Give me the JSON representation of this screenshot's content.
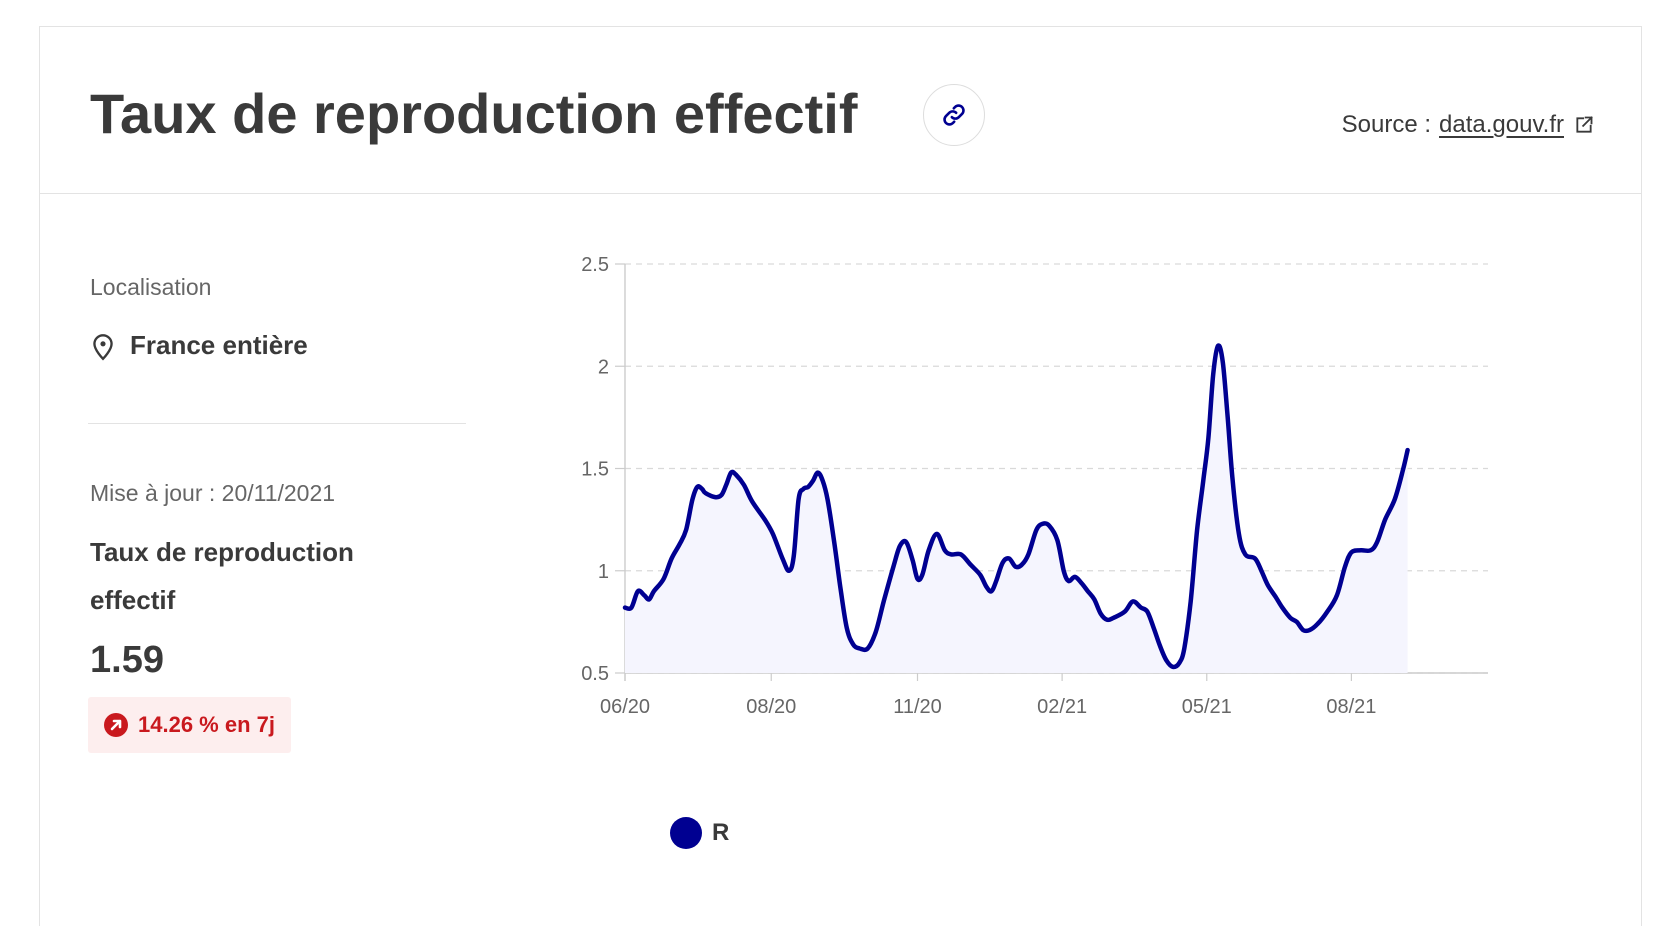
{
  "header": {
    "title": "Taux de reproduction effectif",
    "link_icon": "link-icon",
    "source_prefix": "Source :",
    "source_link": "data.gouv.fr",
    "source_icon": "external-link-icon"
  },
  "location": {
    "label": "Localisation",
    "icon": "map-pin-icon",
    "value": "France entière"
  },
  "metric": {
    "update": "Mise à jour : 20/11/2021",
    "title": "Taux de reproduction effectif",
    "value": "1.59",
    "trend_icon": "arrow-up-right-icon",
    "trend": "14.26 % en 7j",
    "trend_color": "#c9191e"
  },
  "colors": {
    "series": "#000091",
    "area": "#f5f5fe"
  },
  "chart_data": {
    "type": "area",
    "title": "",
    "xlabel": "",
    "ylabel": "",
    "x_tick_labels": [
      "06/20",
      "08/20",
      "11/20",
      "02/21",
      "05/21",
      "08/21"
    ],
    "x_ticks": [
      "2020-06-01",
      "2020-08-31",
      "2020-11-30",
      "2021-02-28",
      "2021-05-29",
      "2021-08-27"
    ],
    "y_ticks": [
      0.5,
      1,
      1.5,
      2,
      2.5
    ],
    "y_tick_labels": [
      "0.5",
      "1",
      "1.5",
      "2",
      "2.5"
    ],
    "ylim": [
      0.5,
      2.5
    ],
    "xlim": [
      "2020-06-01",
      "2021-11-20"
    ],
    "grid": true,
    "legend": "bottom-left",
    "series": [
      {
        "name": "R",
        "color": "#000091",
        "points": [
          [
            "2020-06-01",
            0.82
          ],
          [
            "2020-06-05",
            0.82
          ],
          [
            "2020-06-09",
            0.9
          ],
          [
            "2020-06-13",
            0.88
          ],
          [
            "2020-06-16",
            0.86
          ],
          [
            "2020-06-19",
            0.9
          ],
          [
            "2020-06-25",
            0.96
          ],
          [
            "2020-06-30",
            1.06
          ],
          [
            "2020-07-05",
            1.13
          ],
          [
            "2020-07-09",
            1.2
          ],
          [
            "2020-07-13",
            1.35
          ],
          [
            "2020-07-16",
            1.41
          ],
          [
            "2020-07-19",
            1.4
          ],
          [
            "2020-07-21",
            1.38
          ],
          [
            "2020-07-27",
            1.36
          ],
          [
            "2020-07-31",
            1.37
          ],
          [
            "2020-08-03",
            1.42
          ],
          [
            "2020-08-06",
            1.48
          ],
          [
            "2020-08-09",
            1.47
          ],
          [
            "2020-08-14",
            1.42
          ],
          [
            "2020-08-19",
            1.34
          ],
          [
            "2020-08-27",
            1.25
          ],
          [
            "2020-09-01",
            1.18
          ],
          [
            "2020-09-07",
            1.06
          ],
          [
            "2020-09-11",
            1.0
          ],
          [
            "2020-09-14",
            1.07
          ],
          [
            "2020-09-17",
            1.35
          ],
          [
            "2020-09-20",
            1.4
          ],
          [
            "2020-09-23",
            1.41
          ],
          [
            "2020-09-26",
            1.44
          ],
          [
            "2020-09-29",
            1.48
          ],
          [
            "2020-10-02",
            1.44
          ],
          [
            "2020-10-05",
            1.35
          ],
          [
            "2020-10-09",
            1.15
          ],
          [
            "2020-10-13",
            0.92
          ],
          [
            "2020-10-17",
            0.72
          ],
          [
            "2020-10-21",
            0.64
          ],
          [
            "2020-10-25",
            0.62
          ],
          [
            "2020-10-30",
            0.62
          ],
          [
            "2020-11-04",
            0.7
          ],
          [
            "2020-11-09",
            0.85
          ],
          [
            "2020-11-15",
            1.02
          ],
          [
            "2020-11-19",
            1.12
          ],
          [
            "2020-11-23",
            1.14
          ],
          [
            "2020-11-27",
            1.05
          ],
          [
            "2020-11-30",
            0.96
          ],
          [
            "2020-12-03",
            0.98
          ],
          [
            "2020-12-07",
            1.1
          ],
          [
            "2020-12-12",
            1.18
          ],
          [
            "2020-12-17",
            1.1
          ],
          [
            "2020-12-21",
            1.08
          ],
          [
            "2020-12-27",
            1.08
          ],
          [
            "2021-01-02",
            1.03
          ],
          [
            "2021-01-08",
            0.98
          ],
          [
            "2021-01-12",
            0.92
          ],
          [
            "2021-01-15",
            0.9
          ],
          [
            "2021-01-18",
            0.95
          ],
          [
            "2021-01-22",
            1.04
          ],
          [
            "2021-01-26",
            1.06
          ],
          [
            "2021-01-30",
            1.02
          ],
          [
            "2021-02-03",
            1.03
          ],
          [
            "2021-02-07",
            1.08
          ],
          [
            "2021-02-12",
            1.2
          ],
          [
            "2021-02-16",
            1.23
          ],
          [
            "2021-02-20",
            1.22
          ],
          [
            "2021-02-25",
            1.15
          ],
          [
            "2021-03-01",
            1.0
          ],
          [
            "2021-03-04",
            0.95
          ],
          [
            "2021-03-08",
            0.97
          ],
          [
            "2021-03-12",
            0.94
          ],
          [
            "2021-03-16",
            0.9
          ],
          [
            "2021-03-20",
            0.86
          ],
          [
            "2021-03-24",
            0.79
          ],
          [
            "2021-03-28",
            0.76
          ],
          [
            "2021-04-01",
            0.77
          ],
          [
            "2021-04-08",
            0.8
          ],
          [
            "2021-04-13",
            0.85
          ],
          [
            "2021-04-18",
            0.82
          ],
          [
            "2021-04-22",
            0.8
          ],
          [
            "2021-04-26",
            0.72
          ],
          [
            "2021-04-30",
            0.63
          ],
          [
            "2021-05-04",
            0.56
          ],
          [
            "2021-05-08",
            0.53
          ],
          [
            "2021-05-12",
            0.55
          ],
          [
            "2021-05-15",
            0.62
          ],
          [
            "2021-05-19",
            0.85
          ],
          [
            "2021-05-23",
            1.2
          ],
          [
            "2021-05-27",
            1.45
          ],
          [
            "2021-05-30",
            1.65
          ],
          [
            "2021-06-02",
            1.96
          ],
          [
            "2021-06-05",
            2.1
          ],
          [
            "2021-06-08",
            2.02
          ],
          [
            "2021-06-11",
            1.75
          ],
          [
            "2021-06-14",
            1.45
          ],
          [
            "2021-06-18",
            1.18
          ],
          [
            "2021-06-22",
            1.08
          ],
          [
            "2021-06-28",
            1.06
          ],
          [
            "2021-07-02",
            1.0
          ],
          [
            "2021-07-06",
            0.93
          ],
          [
            "2021-07-11",
            0.87
          ],
          [
            "2021-07-15",
            0.82
          ],
          [
            "2021-07-20",
            0.77
          ],
          [
            "2021-07-24",
            0.75
          ],
          [
            "2021-07-28",
            0.71
          ],
          [
            "2021-08-01",
            0.71
          ],
          [
            "2021-08-06",
            0.74
          ],
          [
            "2021-08-12",
            0.8
          ],
          [
            "2021-08-18",
            0.88
          ],
          [
            "2021-08-23",
            1.02
          ],
          [
            "2021-08-27",
            1.09
          ],
          [
            "2021-09-02",
            1.1
          ],
          [
            "2021-09-08",
            1.1
          ],
          [
            "2021-09-12",
            1.14
          ],
          [
            "2021-09-17",
            1.25
          ],
          [
            "2021-09-23",
            1.35
          ],
          [
            "2021-09-28",
            1.49
          ],
          [
            "2021-10-01",
            1.59
          ]
        ]
      }
    ]
  }
}
